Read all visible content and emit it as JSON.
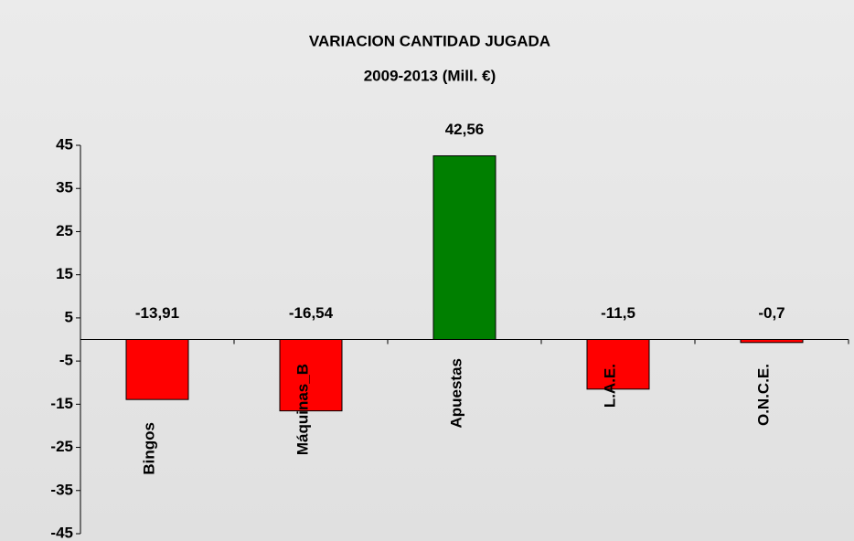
{
  "chart_data": {
    "type": "bar",
    "title": "VARIACION CANTIDAD JUGADA",
    "subtitle": "2009-2013 (Mill. €)",
    "categories": [
      "Bingos",
      "Máquinas_B",
      "Apuestas",
      "L.A.E.",
      "O.N.C.E."
    ],
    "values": [
      -13.91,
      -16.54,
      42.56,
      -11.5,
      -0.7
    ],
    "value_labels": [
      "-13,91",
      "-16,54",
      "42,56",
      "-11,5",
      "-0,7"
    ],
    "colors": [
      "#ff0000",
      "#ff0000",
      "#007f00",
      "#ff0000",
      "#ff0000"
    ],
    "ylim": [
      -45,
      45
    ],
    "yticks": [
      45,
      35,
      25,
      15,
      5,
      -5,
      -15,
      -25,
      -35,
      -45
    ],
    "grid": false
  }
}
